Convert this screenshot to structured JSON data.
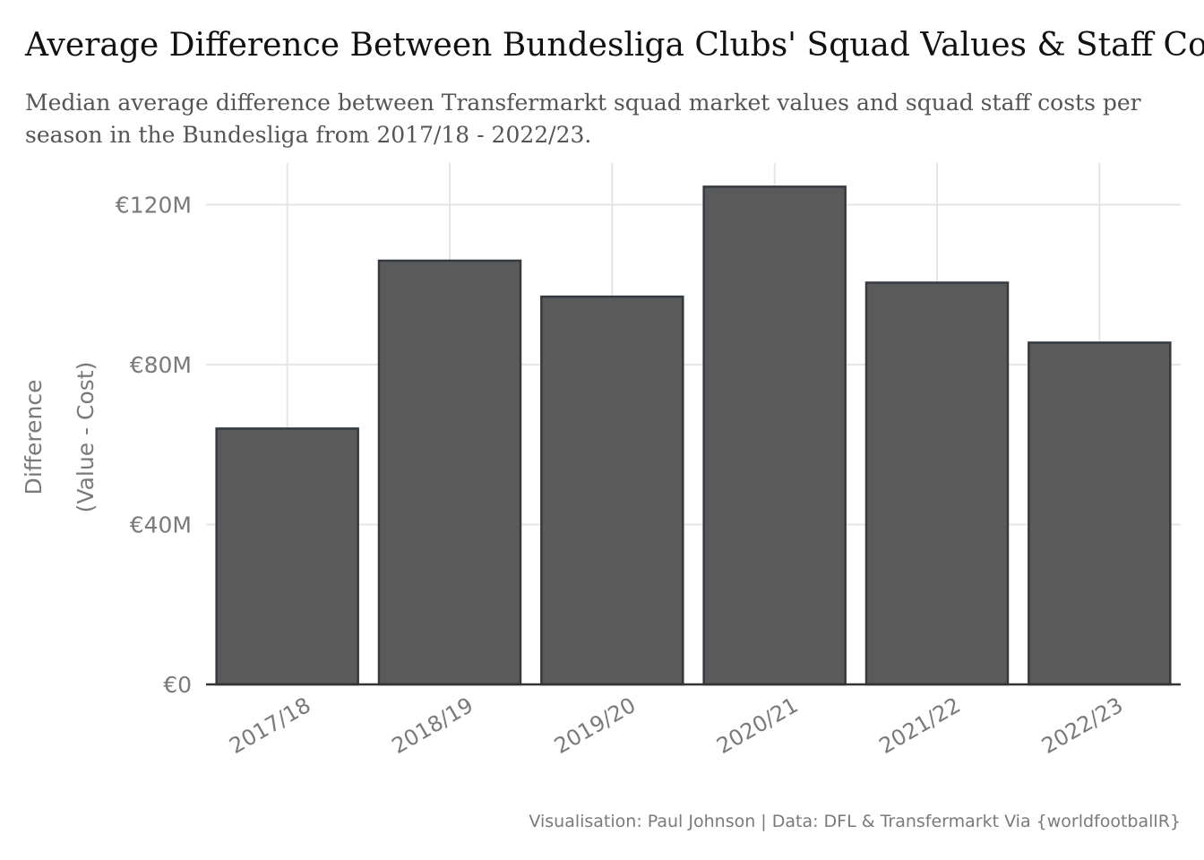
{
  "chart_data": {
    "type": "bar",
    "title": "Average Difference Between Bundesliga Clubs' Squad Values & Staff Co",
    "subtitle": [
      "Median average difference between Transfermarkt squad market values and squad staff costs per",
      "season in the Bundesliga from 2017/18 - 2022/23."
    ],
    "xlabel": "",
    "ylabel": [
      "Difference",
      "(Value - Cost)"
    ],
    "categories": [
      "2017/18",
      "2018/19",
      "2019/20",
      "2020/21",
      "2021/22",
      "2022/23"
    ],
    "values": [
      64,
      106,
      97,
      124.5,
      100.5,
      85.5
    ],
    "value_unit": "€M",
    "ylim": [
      0,
      130
    ],
    "yticks": [
      0,
      40,
      80,
      120
    ],
    "ytick_labels": [
      "€0",
      "€40M",
      "€80M",
      "€120M"
    ],
    "grid": true,
    "legend": "none",
    "caption": "Visualisation: Paul Johnson | Data: DFL & Transfermarkt Via {worldfootballR}",
    "colors": {
      "bar_fill": "#5a5a5a",
      "bar_stroke": "#343a40",
      "grid": "#e6e6e6",
      "axis_text": "#7a7a7a",
      "title": "#111111",
      "subtitle": "#555555"
    }
  }
}
